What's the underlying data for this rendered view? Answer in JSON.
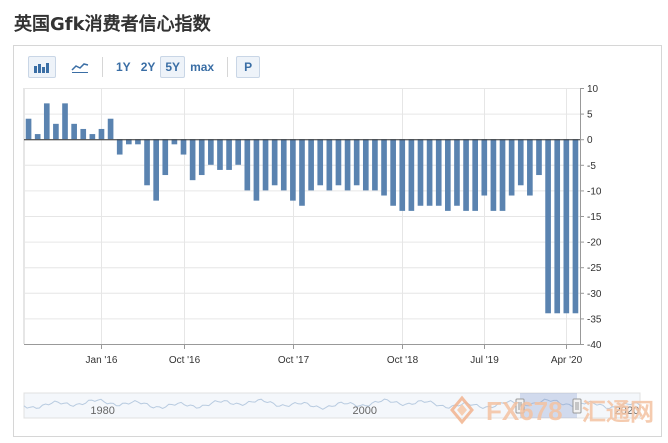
{
  "page": {
    "title": "英国Gfk消费者信心指数"
  },
  "toolbar": {
    "range_1y": "1Y",
    "range_2y": "2Y",
    "range_5y": "5Y",
    "range_max": "max",
    "print_label": "P",
    "active_range": "5Y"
  },
  "colors": {
    "bar": "#5a83b0",
    "axis": "#333333",
    "grid": "#e6e6e6",
    "frame": "#d6d6d6",
    "accent": "#3a6ea5",
    "watermark": "#f0a080"
  },
  "chart_data": {
    "type": "bar",
    "y_axis_position": "right",
    "ylim": [
      -40,
      10
    ],
    "yticks": [
      10,
      5,
      0,
      -5,
      -10,
      -15,
      -20,
      -25,
      -30,
      -35,
      -40
    ],
    "x_tick_labels": [
      {
        "label": "Jan '16",
        "date": "2016-01"
      },
      {
        "label": "Oct '16",
        "date": "2016-10"
      },
      {
        "label": "Oct '17",
        "date": "2017-10"
      },
      {
        "label": "Oct '18",
        "date": "2018-10"
      },
      {
        "label": "Jul '19",
        "date": "2019-07"
      },
      {
        "label": "Apr '20",
        "date": "2020-04"
      }
    ],
    "series": [
      {
        "dates": [
          "2015-05",
          "2015-06",
          "2015-07",
          "2015-08",
          "2015-09",
          "2015-10",
          "2015-11",
          "2015-12",
          "2016-01",
          "2016-02",
          "2016-03",
          "2016-04",
          "2016-05",
          "2016-06",
          "2016-07",
          "2016-08",
          "2016-09",
          "2016-10",
          "2016-11",
          "2016-12",
          "2017-01",
          "2017-02",
          "2017-03",
          "2017-04",
          "2017-05",
          "2017-06",
          "2017-07",
          "2017-08",
          "2017-09",
          "2017-10",
          "2017-11",
          "2017-12",
          "2018-01",
          "2018-02",
          "2018-03",
          "2018-04",
          "2018-05",
          "2018-06",
          "2018-07",
          "2018-08",
          "2018-09",
          "2018-10",
          "2018-11",
          "2018-12",
          "2019-01",
          "2019-02",
          "2019-03",
          "2019-04",
          "2019-05",
          "2019-06",
          "2019-07",
          "2019-08",
          "2019-09",
          "2019-10",
          "2019-11",
          "2019-12",
          "2020-01",
          "2020-02",
          "2020-03",
          "2020-04",
          "2020-05"
        ],
        "values": [
          4,
          1,
          7,
          3,
          7,
          3,
          2,
          1,
          2,
          4,
          -3,
          -1,
          -1,
          -9,
          -12,
          -7,
          -1,
          -3,
          -8,
          -7,
          -5,
          -6,
          -6,
          -5,
          -10,
          -12,
          -10,
          -9,
          -10,
          -12,
          -13,
          -10,
          -9,
          -10,
          -9,
          -10,
          -9,
          -10,
          -10,
          -11,
          -13,
          -14,
          -14,
          -13,
          -13,
          -13,
          -14,
          -13,
          -14,
          -14,
          -11,
          -14,
          -14,
          -11,
          -9,
          -11,
          -7,
          -34,
          -34,
          -34,
          -34
        ]
      }
    ],
    "navigator": {
      "labels": [
        "1980",
        "2000",
        "2020"
      ]
    }
  },
  "watermark": {
    "brand": "FX678",
    "cn": "汇通网"
  }
}
